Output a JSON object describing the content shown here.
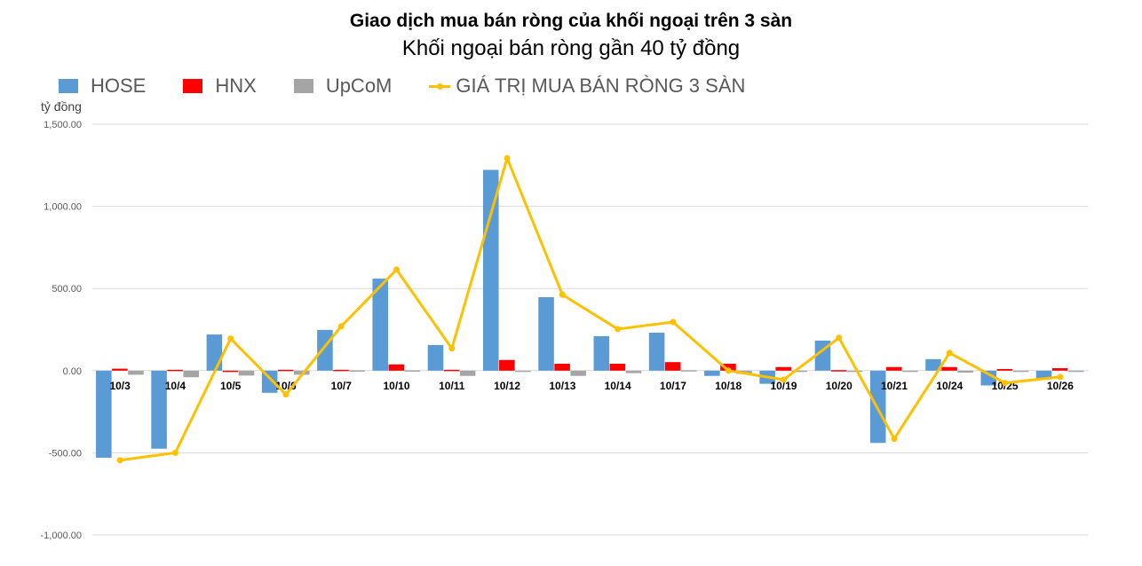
{
  "title": "Giao dịch mua bán ròng của khối ngoại trên 3 sàn",
  "subtitle": "Khối ngoại bán ròng gần 40 tỷ đồng",
  "unit_label": "tỷ đồng",
  "legend": [
    {
      "name": "HOSE",
      "color": "#5B9BD5",
      "kind": "bar"
    },
    {
      "name": "HNX",
      "color": "#FF0000",
      "kind": "bar"
    },
    {
      "name": "UpCoM",
      "color": "#A5A5A5",
      "kind": "bar"
    },
    {
      "name": "GIÁ TRỊ MUA BÁN RÒNG 3 SÀN",
      "color": "#FFC000",
      "kind": "line"
    }
  ],
  "chart_data": {
    "type": "bar",
    "title": "Giao dịch mua bán ròng của khối ngoại trên 3 sàn",
    "subtitle": "Khối ngoại bán ròng gần 40 tỷ đồng",
    "xlabel": "",
    "ylabel": "tỷ đồng",
    "ylim": [
      -1000,
      1500
    ],
    "yticks": [
      1500,
      1000,
      500,
      0,
      -500,
      -1000
    ],
    "ytick_labels": [
      "1,500.00",
      "1,000.00",
      "500.00",
      "0.00",
      "-500.00",
      "-1,000.00"
    ],
    "grid": true,
    "legend_position": "top",
    "categories": [
      "10/3",
      "10/4",
      "10/5",
      "10/6",
      "10/7",
      "10/10",
      "10/11",
      "10/12",
      "10/13",
      "10/14",
      "10/17",
      "10/18",
      "10/19",
      "10/20",
      "10/21",
      "10/24",
      "10/25",
      "10/26"
    ],
    "series": [
      {
        "name": "HOSE",
        "type": "bar",
        "color": "#5B9BD5",
        "values": [
          -530,
          -475,
          220,
          -135,
          248,
          560,
          156,
          1222,
          447,
          210,
          231,
          -32,
          -80,
          183,
          -440,
          70,
          -90,
          -54
        ]
      },
      {
        "name": "HNX",
        "type": "bar",
        "color": "#FF0000",
        "values": [
          12,
          5,
          -3,
          5,
          5,
          38,
          5,
          65,
          42,
          42,
          52,
          42,
          22,
          3,
          22,
          22,
          10,
          15
        ]
      },
      {
        "name": "UpCoM",
        "type": "bar",
        "color": "#A5A5A5",
        "values": [
          -25,
          -40,
          -30,
          -25,
          2,
          2,
          -32,
          -2,
          -32,
          -15,
          3,
          -20,
          -2,
          -2,
          -2,
          -12,
          -2,
          -5
        ]
      },
      {
        "name": "GIÁ TRỊ MUA BÁN RÒNG 3 SÀN",
        "type": "line",
        "color": "#FFC000",
        "values": [
          -545,
          -500,
          195,
          -145,
          270,
          615,
          135,
          1293,
          462,
          253,
          296,
          0,
          -55,
          200,
          -415,
          108,
          -75,
          -38
        ]
      }
    ]
  }
}
